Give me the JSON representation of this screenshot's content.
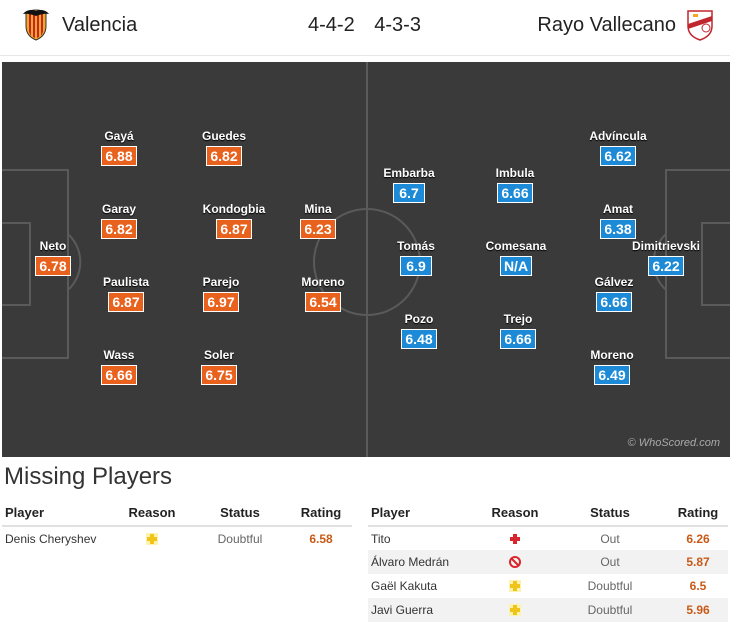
{
  "header": {
    "home_team": "Valencia",
    "away_team": "Rayo Vallecano",
    "home_formation": "4-4-2",
    "away_formation": "4-3-3",
    "home_crest_icon": "valencia-bat-crest-icon",
    "away_crest_icon": "rayo-vallecano-crest-icon"
  },
  "pitch": {
    "background": "#3a3a3a",
    "home_color": "#e8611d",
    "away_color": "#1c8ad6",
    "watermark": "© WhoScored.com",
    "home_players": [
      {
        "name": "Neto",
        "rating": "6.78"
      },
      {
        "name": "Gayá",
        "rating": "6.88"
      },
      {
        "name": "Garay",
        "rating": "6.82"
      },
      {
        "name": "Paulista",
        "rating": "6.87"
      },
      {
        "name": "Wass",
        "rating": "6.66"
      },
      {
        "name": "Guedes",
        "rating": "6.82"
      },
      {
        "name": "Kondogbia",
        "rating": "6.87"
      },
      {
        "name": "Parejo",
        "rating": "6.97"
      },
      {
        "name": "Soler",
        "rating": "6.75"
      },
      {
        "name": "Mina",
        "rating": "6.23"
      },
      {
        "name": "Moreno",
        "rating": "6.54"
      }
    ],
    "away_players": [
      {
        "name": "Embarba",
        "rating": "6.7"
      },
      {
        "name": "Tomás",
        "rating": "6.9"
      },
      {
        "name": "Pozo",
        "rating": "6.48"
      },
      {
        "name": "Imbula",
        "rating": "6.66"
      },
      {
        "name": "Comesana",
        "rating": "N/A"
      },
      {
        "name": "Trejo",
        "rating": "6.66"
      },
      {
        "name": "Advíncula",
        "rating": "6.62"
      },
      {
        "name": "Amat",
        "rating": "6.38"
      },
      {
        "name": "Gálvez",
        "rating": "6.66"
      },
      {
        "name": "Moreno",
        "rating": "6.49"
      },
      {
        "name": "Dimitrievski",
        "rating": "6.22"
      }
    ]
  },
  "missing": {
    "title": "Missing Players",
    "columns": [
      "Player",
      "Reason",
      "Status",
      "Rating"
    ],
    "home": [
      {
        "player": "Denis Cheryshev",
        "reason_icon": "doubtful-cross-icon",
        "status": "Doubtful",
        "rating": "6.58"
      }
    ],
    "away": [
      {
        "player": "Tito",
        "reason_icon": "injury-cross-icon",
        "status": "Out",
        "rating": "6.26"
      },
      {
        "player": "Álvaro Medrán",
        "reason_icon": "ban-icon",
        "status": "Out",
        "rating": "5.87"
      },
      {
        "player": "Gaël Kakuta",
        "reason_icon": "doubtful-cross-icon",
        "status": "Doubtful",
        "rating": "6.5"
      },
      {
        "player": "Javi Guerra",
        "reason_icon": "doubtful-cross-icon",
        "status": "Doubtful",
        "rating": "5.96"
      }
    ]
  }
}
